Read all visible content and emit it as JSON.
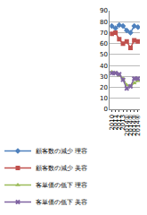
{
  "chart_data": {
    "type": "line",
    "categories": [
      "2010",
      "2011",
      "2012",
      "2013",
      "2014①",
      "2014②",
      "2014③",
      "2014④"
    ],
    "series": [
      {
        "name": "顧客数の減少 理容",
        "color": "#4f81bd",
        "marker": "diamond",
        "values": [
          76,
          74,
          77,
          76,
          72,
          70,
          76,
          75
        ]
      },
      {
        "name": "顧客数の減少 美容",
        "color": "#c0504d",
        "marker": "square",
        "values": [
          69,
          70,
          64,
          60,
          62,
          56,
          63,
          62
        ]
      },
      {
        "name": "客単価の低下 理容",
        "color": "#9bbb59",
        "marker": "triangle-up",
        "values": [
          34,
          33,
          31,
          28,
          22,
          21,
          24,
          26
        ]
      },
      {
        "name": "客単価の低下 美容",
        "color": "#8064a2",
        "marker": "x",
        "values": [
          33,
          33,
          32,
          27,
          19,
          21,
          28,
          28
        ]
      }
    ],
    "ylim": [
      0,
      90
    ],
    "yticks": [
      0,
      10,
      20,
      30,
      40,
      50,
      60,
      70,
      80,
      90
    ],
    "grid": true,
    "legend": "bottom"
  }
}
